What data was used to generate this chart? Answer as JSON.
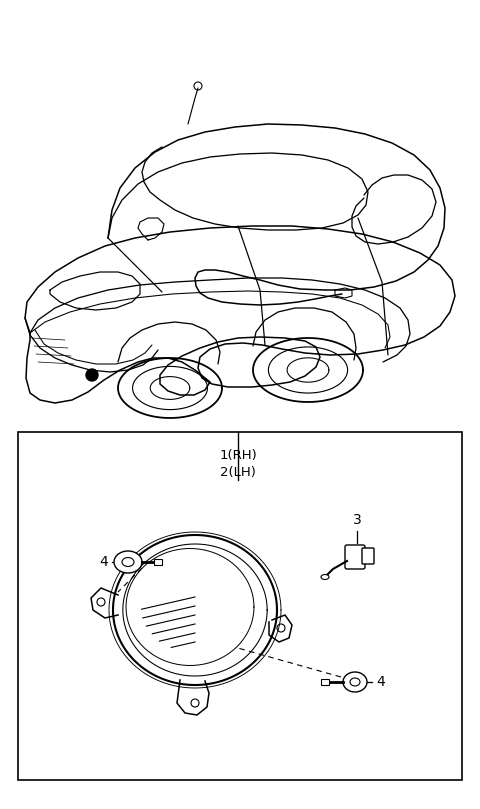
{
  "bg_color": "#ffffff",
  "line_color": "#000000",
  "fig_width": 4.8,
  "fig_height": 8.09,
  "dpi": 100,
  "label_1rh": "1(RH)",
  "label_2lh": "2(LH)",
  "label_3": "3",
  "label_4a": "4",
  "label_4b": "4",
  "font_size_label": 9.5,
  "font_size_num": 10
}
